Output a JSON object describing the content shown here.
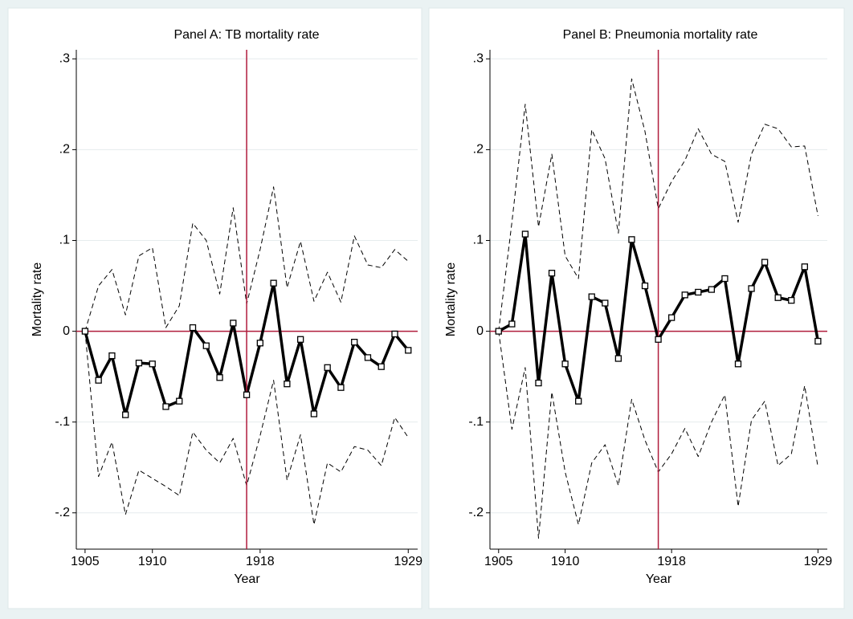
{
  "chart_data": [
    {
      "type": "line",
      "title": "Panel A: TB mortality rate",
      "xlabel": "Year",
      "ylabel": "Mortality rate",
      "x": [
        1905,
        1906,
        1907,
        1908,
        1909,
        1910,
        1911,
        1912,
        1913,
        1914,
        1915,
        1916,
        1917,
        1918,
        1919,
        1920,
        1921,
        1922,
        1923,
        1924,
        1925,
        1926,
        1927,
        1928,
        1929
      ],
      "series": [
        {
          "color": "#000000",
          "line_style": "solid",
          "markers": true,
          "values": [
            0,
            -0.054,
            -0.027,
            -0.092,
            -0.035,
            -0.036,
            -0.083,
            -0.077,
            0.004,
            -0.016,
            -0.051,
            0.009,
            -0.07,
            -0.013,
            0.053,
            -0.058,
            -0.009,
            -0.091,
            -0.04,
            -0.062,
            -0.012,
            -0.029,
            -0.039,
            -0.003,
            -0.021
          ]
        },
        {
          "color": "#000000",
          "line_style": "dashed",
          "markers": false,
          "values": [
            0,
            0.05,
            0.068,
            0.018,
            0.083,
            0.092,
            0.004,
            0.028,
            0.119,
            0.1,
            0.041,
            0.136,
            0.03,
            0.09,
            0.159,
            0.048,
            0.099,
            0.033,
            0.065,
            0.032,
            0.105,
            0.073,
            0.07,
            0.09,
            0.077
          ]
        },
        {
          "color": "#000000",
          "line_style": "dashed",
          "markers": false,
          "values": [
            0,
            -0.16,
            -0.122,
            -0.202,
            -0.153,
            -0.162,
            -0.171,
            -0.181,
            -0.111,
            -0.131,
            -0.145,
            -0.118,
            -0.17,
            -0.115,
            -0.054,
            -0.164,
            -0.114,
            -0.213,
            -0.145,
            -0.155,
            -0.127,
            -0.131,
            -0.148,
            -0.095,
            -0.117
          ]
        }
      ],
      "xlim": [
        1904.35,
        1929.7
      ],
      "xticks": [
        1905,
        1910,
        1918,
        1929
      ],
      "ylim": [
        -0.24,
        0.31
      ],
      "yticks": [
        {
          "value": -0.2,
          "label": "-.2"
        },
        {
          "value": -0.1,
          "label": "-.1"
        },
        0,
        {
          "value": 0.1,
          "label": ".1"
        },
        {
          "value": 0.2,
          "label": ".2"
        },
        {
          "value": 0.3,
          "label": ".3"
        }
      ],
      "grid": true,
      "hline": 0,
      "vline": 1917,
      "refline_color": "#b01c3c"
    },
    {
      "type": "line",
      "title": "Panel B: Pneumonia mortality rate",
      "xlabel": "Year",
      "ylabel": "Mortality rate",
      "x": [
        1905,
        1906,
        1907,
        1908,
        1909,
        1910,
        1911,
        1912,
        1913,
        1914,
        1915,
        1916,
        1917,
        1918,
        1919,
        1920,
        1921,
        1922,
        1923,
        1924,
        1925,
        1926,
        1927,
        1928,
        1929
      ],
      "series": [
        {
          "color": "#000000",
          "line_style": "solid",
          "markers": true,
          "values": [
            0,
            0.008,
            0.107,
            -0.057,
            0.064,
            -0.036,
            -0.077,
            0.038,
            0.031,
            -0.03,
            0.101,
            0.05,
            -0.009,
            0.015,
            0.04,
            0.043,
            0.046,
            0.058,
            -0.036,
            0.047,
            0.076,
            0.037,
            0.034,
            0.071,
            -0.011
          ]
        },
        {
          "color": "#000000",
          "line_style": "dashed",
          "markers": false,
          "values": [
            0,
            0.12,
            0.25,
            0.115,
            0.195,
            0.083,
            0.058,
            0.222,
            0.19,
            0.108,
            0.278,
            0.22,
            0.135,
            0.165,
            0.188,
            0.223,
            0.195,
            0.187,
            0.12,
            0.195,
            0.228,
            0.223,
            0.203,
            0.204,
            0.127
          ]
        },
        {
          "color": "#000000",
          "line_style": "dashed",
          "markers": false,
          "values": [
            0,
            -0.108,
            -0.04,
            -0.228,
            -0.067,
            -0.155,
            -0.213,
            -0.145,
            -0.125,
            -0.17,
            -0.075,
            -0.12,
            -0.155,
            -0.135,
            -0.107,
            -0.138,
            -0.1,
            -0.07,
            -0.193,
            -0.098,
            -0.077,
            -0.148,
            -0.135,
            -0.06,
            -0.15
          ]
        }
      ],
      "xlim": [
        1904.35,
        1929.7
      ],
      "xticks": [
        1905,
        1910,
        1918,
        1929
      ],
      "ylim": [
        -0.24,
        0.31
      ],
      "yticks": [
        {
          "value": -0.2,
          "label": "-.2"
        },
        {
          "value": -0.1,
          "label": "-.1"
        },
        0,
        {
          "value": 0.1,
          "label": ".1"
        },
        {
          "value": 0.2,
          "label": ".2"
        },
        {
          "value": 0.3,
          "label": ".3"
        }
      ],
      "grid": true,
      "hline": 0,
      "vline": 1917,
      "refline_color": "#b01c3c"
    }
  ]
}
